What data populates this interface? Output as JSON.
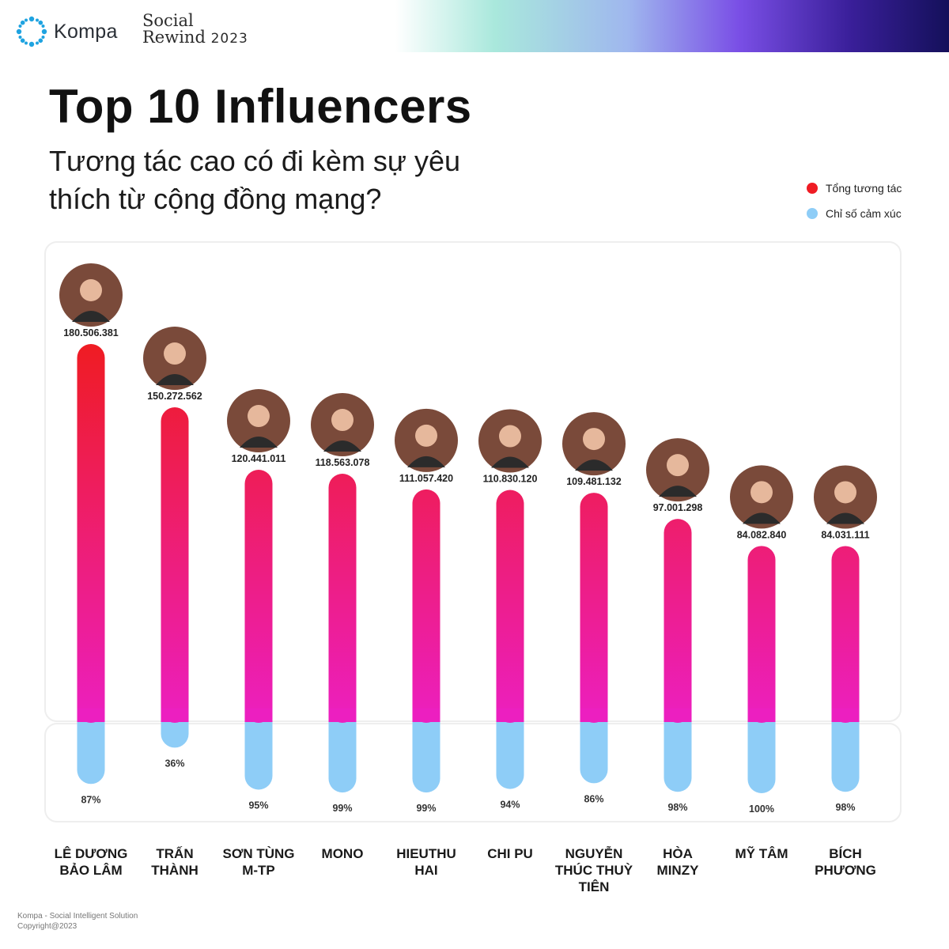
{
  "brand": {
    "logo_text": "Kompa",
    "event_line1": "Social",
    "event_line2": "Rewind",
    "event_year": "2023"
  },
  "header": {
    "title": "Top 10 Influencers",
    "subtitle": "Tương tác cao có đi kèm sự yêu thích từ cộng đồng mạng?"
  },
  "colors": {
    "bar_top": "#ef1c24",
    "bar_bottom": "#ec1fc0",
    "sentiment": "#8ecdf7"
  },
  "chart_data": {
    "type": "bar",
    "legend_position": "top-right",
    "categories": [
      [
        "LÊ DƯƠNG",
        "BẢO LÂM"
      ],
      [
        "TRẤN",
        "THÀNH"
      ],
      [
        "SƠN TÙNG",
        "M-TP"
      ],
      [
        "MONO"
      ],
      [
        "HIEUTHU",
        "HAI"
      ],
      [
        "CHI PU"
      ],
      [
        "NGUYỄN",
        "THÚC THUỲ",
        "TIÊN"
      ],
      [
        "HÒA",
        "MINZY"
      ],
      [
        "MỸ TÂM"
      ],
      [
        "BÍCH",
        "PHƯƠNG"
      ]
    ],
    "series": [
      {
        "name": "Tổng tương tác",
        "values": [
          180506381,
          150272562,
          120441011,
          118563078,
          111057420,
          110830120,
          109481132,
          97001298,
          84082840,
          84031111
        ],
        "labels": [
          "180.506.381",
          "150.272.562",
          "120.441.011",
          "118.563.078",
          "111.057.420",
          "110.830.120",
          "109.481.132",
          "97.001.298",
          "84.082.840",
          "84.031.111"
        ]
      },
      {
        "name": "Chỉ số cảm xúc",
        "values": [
          87,
          36,
          95,
          99,
          99,
          94,
          86,
          98,
          100,
          98
        ],
        "labels": [
          "87%",
          "36%",
          "95%",
          "99%",
          "99%",
          "94%",
          "86%",
          "98%",
          "100%",
          "98%"
        ]
      }
    ],
    "avatars": [
      "avatar-le-duong-bao-lam",
      "avatar-tran-thanh",
      "avatar-son-tung-mtp",
      "avatar-mono",
      "avatar-hieuthuhai",
      "avatar-chi-pu",
      "avatar-nguyen-thuc-thuy-tien",
      "avatar-hoa-minzy",
      "avatar-my-tam",
      "avatar-bich-phuong"
    ]
  },
  "footer": {
    "line1": "Kompa - Social Intelligent Solution",
    "line2": "Copyright@2023"
  }
}
